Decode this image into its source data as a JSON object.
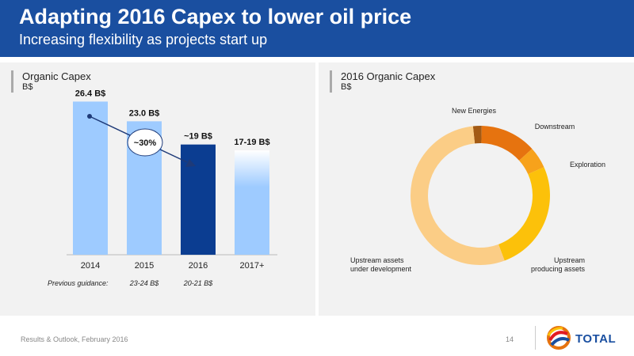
{
  "header": {
    "title": "Adapting 2016 Capex to lower oil price",
    "subtitle": "Increasing flexibility as projects start up"
  },
  "left_panel": {
    "title": "Organic Capex",
    "unit": "B$"
  },
  "right_panel": {
    "title": "2016 Organic Capex",
    "unit": "B$"
  },
  "reduction_badge": "~30%",
  "previous_guidance": {
    "label": "Previous guidance:",
    "values": [
      "23-24 B$",
      "20-21 B$"
    ]
  },
  "colors": {
    "header": "#1a4fa0",
    "bar_light": "#9ecbff",
    "bar_dark": "#0b3d91",
    "arrow": "#1e3a78"
  },
  "chart_data": [
    {
      "type": "bar",
      "categories": [
        "2014",
        "2015",
        "2016",
        "2017+"
      ],
      "values": [
        26.4,
        23.0,
        19,
        18
      ],
      "value_labels": [
        "26.4 B$",
        "23.0 B$",
        "~19 B$",
        "17-19 B$"
      ],
      "range_2017": [
        17,
        19
      ],
      "title": "Organic Capex",
      "ylabel": "B$",
      "ylim": [
        0,
        30
      ],
      "grid": false
    },
    {
      "type": "pie",
      "title": "2016 Organic Capex",
      "ylabel": "B$",
      "donut": true,
      "slices": [
        {
          "label": "New Energies",
          "value": 2,
          "color": "#a35a14"
        },
        {
          "label": "Downstream",
          "value": 13,
          "color": "#e6730f"
        },
        {
          "label": "Exploration",
          "value": 5,
          "color": "#f7a21b"
        },
        {
          "label": "Upstream\nproducing assets",
          "value": 26,
          "color": "#fcc10a"
        },
        {
          "label": "Upstream assets\nunder development",
          "value": 54,
          "color": "#fbcd86"
        }
      ]
    }
  ],
  "footer": {
    "text": "Results & Outlook, February 2016",
    "page": "14"
  },
  "logo": {
    "text": "TOTAL"
  }
}
